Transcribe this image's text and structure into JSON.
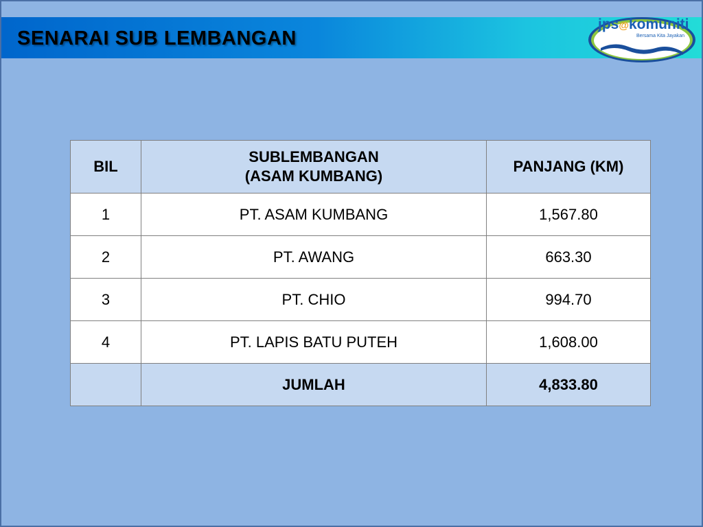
{
  "title": "SENARAI SUB LEMBANGAN",
  "logo": {
    "name": "jps@komuniti",
    "tagline": "Bersama Kita Jayakan"
  },
  "table": {
    "headers": {
      "bil": "BIL",
      "sub_line1": "SUBLEMBANGAN",
      "sub_line2": "(ASAM KUMBANG)",
      "panjang": "PANJANG (KM)"
    },
    "rows": [
      {
        "bil": "1",
        "name": "PT. ASAM KUMBANG",
        "panjang": "1,567.80"
      },
      {
        "bil": "2",
        "name": "PT. AWANG",
        "panjang": "663.30"
      },
      {
        "bil": "3",
        "name": "PT. CHIO",
        "panjang": "994.70"
      },
      {
        "bil": "4",
        "name": "PT. LAPIS BATU PUTEH",
        "panjang": "1,608.00"
      }
    ],
    "total": {
      "label": "JUMLAH",
      "value": "4,833.80"
    }
  }
}
